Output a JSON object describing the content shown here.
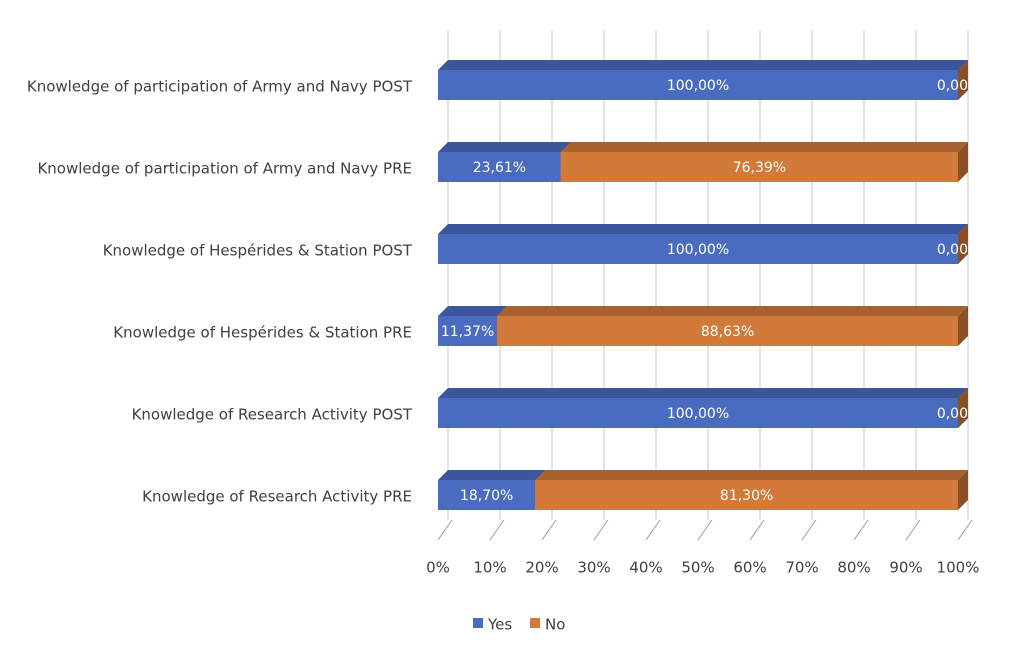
{
  "chart_data": {
    "type": "bar",
    "orientation": "horizontal",
    "stacked": true,
    "categories": [
      "Knowledge of participation of Army and Navy POST",
      "Knowledge of participation of Army and Navy PRE",
      "Knowledge of Hespérides & Station POST",
      "Knowledge of Hespérides & Station PRE",
      "Knowledge of Research Activity POST",
      "Knowledge of Research Activity PRE"
    ],
    "series": [
      {
        "name": "Yes",
        "color": "#4a6cc0",
        "values": [
          100,
          23.61,
          100,
          11.37,
          100,
          18.7
        ],
        "value_labels": [
          "100,00%",
          "23,61%",
          "100,00%",
          "11,37%",
          "100,00%",
          "18,70%"
        ]
      },
      {
        "name": "No",
        "color": "#d27a3a",
        "values": [
          0,
          76.39,
          0,
          88.63,
          0,
          81.3
        ],
        "value_labels": [
          "0,00",
          "76,39%",
          "0,00",
          "88,63%",
          "0,00",
          "81,30%"
        ]
      }
    ],
    "xlim": [
      0,
      100
    ],
    "xticks": [
      {
        "value": 0,
        "label": "0%"
      },
      {
        "value": 10,
        "label": "10%"
      },
      {
        "value": 20,
        "label": "20%"
      },
      {
        "value": 30,
        "label": "30%"
      },
      {
        "value": 40,
        "label": "40%"
      },
      {
        "value": 50,
        "label": "50%"
      },
      {
        "value": 60,
        "label": "60%"
      },
      {
        "value": 70,
        "label": "70%"
      },
      {
        "value": 80,
        "label": "80%"
      },
      {
        "value": 90,
        "label": "90%"
      },
      {
        "value": 100,
        "label": "100%"
      }
    ],
    "grid": true,
    "legend": "bottom"
  }
}
